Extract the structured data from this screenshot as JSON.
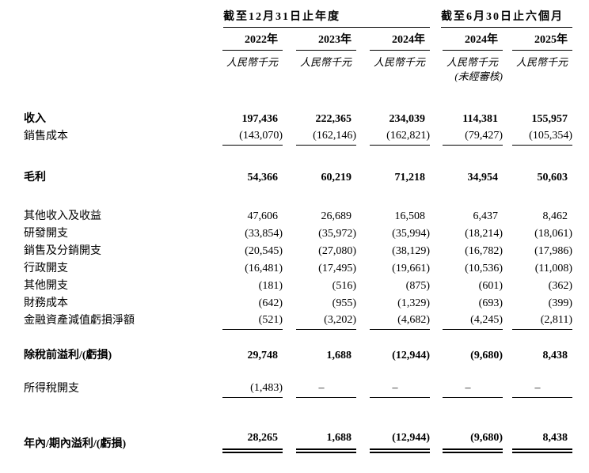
{
  "page": {
    "background": "#ffffff",
    "text_color": "#000000",
    "rule_color": "#000000"
  },
  "table": {
    "groups": [
      {
        "label": "截至12月31日止年度",
        "span": 3
      },
      {
        "label": "截至6月30日止六個月",
        "span": 2
      }
    ],
    "columns": [
      {
        "year": "2022年",
        "unit": "人民幣千元",
        "note": ""
      },
      {
        "year": "2023年",
        "unit": "人民幣千元",
        "note": ""
      },
      {
        "year": "2024年",
        "unit": "人民幣千元",
        "note": ""
      },
      {
        "year": "2024年",
        "unit": "人民幣千元",
        "note": "(未經審核)"
      },
      {
        "year": "2025年",
        "unit": "人民幣千元",
        "note": ""
      }
    ],
    "rows": [
      {
        "label": "收入",
        "bold": true,
        "rule": "",
        "space_before": 0,
        "values": [
          "197,436",
          "222,365",
          "234,039",
          "114,381",
          "155,957"
        ]
      },
      {
        "label": "銷售成本",
        "bold": false,
        "rule": "single",
        "space_before": 0,
        "values": [
          "(143,070)",
          "(162,146)",
          "(162,821)",
          "(79,427)",
          "(105,354)"
        ]
      },
      {
        "label": "毛利",
        "bold": true,
        "rule": "",
        "space_before": 30,
        "values": [
          "54,366",
          "60,219",
          "71,218",
          "34,954",
          "50,603"
        ]
      },
      {
        "label": "其他收入及收益",
        "bold": false,
        "rule": "",
        "space_before": 27,
        "values": [
          "47,606",
          "26,689",
          "16,508",
          "6,437",
          "8,462"
        ]
      },
      {
        "label": "研發開支",
        "bold": false,
        "rule": "",
        "space_before": 0,
        "values": [
          "(33,854)",
          "(35,972)",
          "(35,994)",
          "(18,214)",
          "(18,061)"
        ]
      },
      {
        "label": "銷售及分銷開支",
        "bold": false,
        "rule": "",
        "space_before": 0,
        "values": [
          "(20,545)",
          "(27,080)",
          "(38,129)",
          "(16,782)",
          "(17,986)"
        ]
      },
      {
        "label": "行政開支",
        "bold": false,
        "rule": "",
        "space_before": 0,
        "values": [
          "(16,481)",
          "(17,495)",
          "(19,661)",
          "(10,536)",
          "(11,008)"
        ]
      },
      {
        "label": "其他開支",
        "bold": false,
        "rule": "",
        "space_before": 0,
        "values": [
          "(181)",
          "(516)",
          "(875)",
          "(601)",
          "(362)"
        ]
      },
      {
        "label": "財務成本",
        "bold": false,
        "rule": "",
        "space_before": 0,
        "values": [
          "(642)",
          "(955)",
          "(1,329)",
          "(693)",
          "(399)"
        ]
      },
      {
        "label": "金融資產減值虧損淨額",
        "bold": false,
        "rule": "single",
        "space_before": 0,
        "values": [
          "(521)",
          "(3,202)",
          "(4,682)",
          "(4,245)",
          "(2,811)"
        ]
      },
      {
        "label": "除稅前溢利/(虧損)",
        "bold": true,
        "rule": "",
        "space_before": 22,
        "values": [
          "29,748",
          "1,688",
          "(12,944)",
          "(9,680)",
          "8,438"
        ]
      },
      {
        "label": "所得稅開支",
        "bold": false,
        "rule": "single",
        "space_before": 20,
        "values": [
          "(1,483)",
          "–",
          "–",
          "–",
          "–"
        ]
      },
      {
        "label": "年內/期內溢利/(虧損)",
        "bold": true,
        "rule": "double",
        "space_before": 40,
        "values": [
          "28,265",
          "1,688",
          "(12,944)",
          "(9,680)",
          "8,438"
        ]
      }
    ]
  }
}
